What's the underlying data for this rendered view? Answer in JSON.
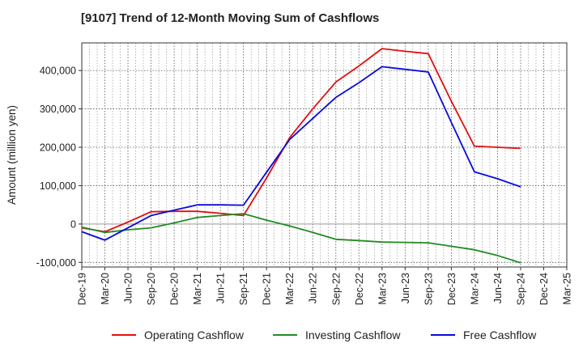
{
  "chart_data": {
    "type": "line",
    "title": "[9107]  Trend of 12-Month Moving Sum of Cashflows",
    "xlabel": "",
    "ylabel": "Amount (million yen)",
    "categories": [
      "Dec-19",
      "Mar-20",
      "Jun-20",
      "Sep-20",
      "Dec-20",
      "Mar-21",
      "Jun-21",
      "Sep-21",
      "Dec-21",
      "Mar-22",
      "Jun-22",
      "Sep-22",
      "Dec-22",
      "Mar-23",
      "Jun-23",
      "Sep-23",
      "Dec-23",
      "Mar-24",
      "Jun-24",
      "Sep-24",
      "Dec-24",
      "Mar-25"
    ],
    "ylim": [
      -112000,
      472000
    ],
    "yticks": [
      -100000,
      0,
      100000,
      200000,
      300000,
      400000
    ],
    "ytick_labels": [
      "-100,000",
      "0",
      "100,000",
      "200,000",
      "300,000",
      "400,000"
    ],
    "grid": true,
    "legend_position": "bottom",
    "series": [
      {
        "name": "Operating Cashflow",
        "color": "#e01010",
        "values": [
          -10000,
          -20000,
          5000,
          32000,
          33000,
          33000,
          28000,
          22000,
          120000,
          225000,
          300000,
          370000,
          412000,
          457000,
          450000,
          444000,
          320000,
          203000,
          200000,
          197000,
          null,
          null
        ]
      },
      {
        "name": "Investing Cashflow",
        "color": "#228b22",
        "values": [
          -8000,
          -22000,
          -15000,
          -10000,
          3000,
          17000,
          22000,
          27000,
          10000,
          -5000,
          -22000,
          -40000,
          -43000,
          -47000,
          -48000,
          -49000,
          -58000,
          -67000,
          -82000,
          -101000,
          null,
          null
        ]
      },
      {
        "name": "Free Cashflow",
        "color": "#0a0adc",
        "values": [
          -20000,
          -42000,
          -10000,
          22000,
          36000,
          50000,
          50000,
          49000,
          135000,
          220000,
          275000,
          330000,
          368000,
          410000,
          403000,
          396000,
          265000,
          136000,
          118000,
          97000,
          null,
          null
        ]
      }
    ]
  }
}
